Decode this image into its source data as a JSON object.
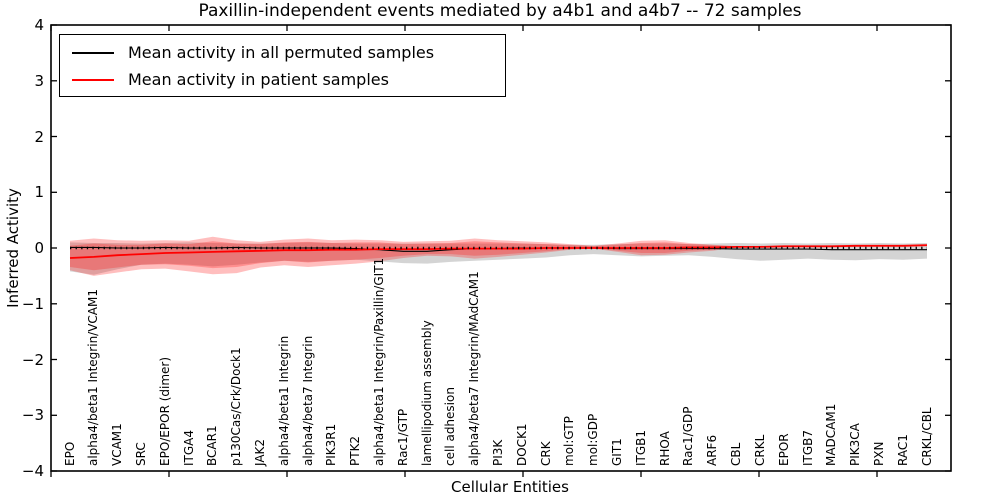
{
  "chart_data": {
    "type": "line",
    "title": "Paxillin-independent events mediated by a4b1 and a4b7 -- 72 samples",
    "xlabel": "Cellular Entities",
    "ylabel": "Inferred Activity",
    "ylim": [
      -4,
      4
    ],
    "ytick_labels": [
      "4",
      "3",
      "2",
      "1",
      "0",
      "−1",
      "−2",
      "−3",
      "−4"
    ],
    "grid": false,
    "legend_position": "upper left",
    "zero_line": {
      "style": "dotted",
      "color": "#000000",
      "y": 0
    },
    "categories": [
      "EPO",
      "alpha4/beta1 Integrin/VCAM1",
      "VCAM1",
      "SRC",
      "EPO/EPOR (dimer)",
      "ITGA4",
      "BCAR1",
      "p130Cas/Crk/Dock1",
      "JAK2",
      "alpha4/beta1 Integrin",
      "alpha4/beta7 Integrin",
      "PIK3R1",
      "PTK2",
      "alpha4/beta1 Integrin/Paxillin/GIT1",
      "Rac1/GTP",
      "lamellipodium assembly",
      "cell adhesion",
      "alpha4/beta7 Integrin/MAdCAM1",
      "PI3K",
      "DOCK1",
      "CRK",
      "mol:GTP",
      "mol:GDP",
      "GIT1",
      "ITGB1",
      "RHOA",
      "Rac1/GDP",
      "ARF6",
      "CBL",
      "CRKL",
      "EPOR",
      "ITGB7",
      "MADCAM1",
      "PIK3CA",
      "PXN",
      "RAC1",
      "CRKL/CBL"
    ],
    "series": [
      {
        "name": "Mean activity in all permuted samples",
        "color": "#000000",
        "values": [
          0.01,
          0.01,
          0.0,
          0.0,
          0.01,
          0.0,
          0.0,
          0.01,
          0.0,
          0.0,
          0.0,
          0.0,
          -0.01,
          -0.03,
          -0.06,
          -0.06,
          -0.03,
          -0.01,
          -0.01,
          0.0,
          0.0,
          0.0,
          0.0,
          -0.01,
          -0.01,
          -0.01,
          -0.01,
          -0.01,
          -0.02,
          -0.02,
          -0.02,
          -0.02,
          -0.03,
          -0.03,
          -0.03,
          -0.03,
          -0.03
        ]
      },
      {
        "name": "Mean activity in patient samples",
        "color": "#ff0000",
        "values": [
          -0.18,
          -0.16,
          -0.13,
          -0.11,
          -0.09,
          -0.08,
          -0.07,
          -0.06,
          -0.05,
          -0.04,
          -0.04,
          -0.03,
          -0.03,
          -0.02,
          -0.02,
          -0.02,
          -0.01,
          -0.01,
          -0.01,
          -0.01,
          0.0,
          0.0,
          0.0,
          0.0,
          0.0,
          0.0,
          0.01,
          0.01,
          0.02,
          0.02,
          0.03,
          0.03,
          0.03,
          0.04,
          0.04,
          0.04,
          0.05
        ]
      }
    ],
    "bands": [
      {
        "name": "permuted samples range",
        "color": "#787878",
        "opacity": 0.32,
        "upper": [
          0.1,
          0.09,
          0.09,
          0.08,
          0.09,
          0.1,
          0.09,
          0.08,
          0.08,
          0.09,
          0.1,
          0.09,
          0.08,
          0.08,
          0.08,
          0.08,
          0.08,
          0.08,
          0.08,
          0.08,
          0.07,
          0.06,
          0.06,
          0.07,
          0.08,
          0.08,
          0.07,
          0.08,
          0.09,
          0.08,
          0.09,
          0.08,
          0.09,
          0.08,
          0.09,
          0.08,
          0.09
        ],
        "lower": [
          -0.42,
          -0.48,
          -0.38,
          -0.3,
          -0.28,
          -0.3,
          -0.33,
          -0.3,
          -0.26,
          -0.23,
          -0.25,
          -0.23,
          -0.21,
          -0.24,
          -0.27,
          -0.28,
          -0.25,
          -0.23,
          -0.21,
          -0.19,
          -0.17,
          -0.13,
          -0.11,
          -0.13,
          -0.15,
          -0.14,
          -0.13,
          -0.16,
          -0.2,
          -0.23,
          -0.21,
          -0.19,
          -0.21,
          -0.22,
          -0.2,
          -0.21,
          -0.19
        ]
      },
      {
        "name": "patient samples outer range",
        "color": "#ff1414",
        "opacity": 0.28,
        "upper": [
          0.13,
          0.17,
          0.14,
          0.13,
          0.14,
          0.13,
          0.2,
          0.14,
          0.11,
          0.15,
          0.17,
          0.14,
          0.15,
          0.14,
          0.11,
          0.12,
          0.13,
          0.17,
          0.14,
          0.12,
          0.1,
          0.07,
          0.04,
          0.08,
          0.13,
          0.14,
          0.09,
          0.06,
          0.03,
          0.03,
          0.04,
          0.04,
          0.04,
          0.05,
          0.05,
          0.05,
          0.06
        ],
        "lower": [
          -0.4,
          -0.5,
          -0.44,
          -0.38,
          -0.37,
          -0.42,
          -0.47,
          -0.45,
          -0.35,
          -0.31,
          -0.34,
          -0.31,
          -0.28,
          -0.24,
          -0.18,
          -0.14,
          -0.15,
          -0.19,
          -0.16,
          -0.12,
          -0.08,
          -0.03,
          -0.01,
          -0.07,
          -0.13,
          -0.12,
          -0.08,
          -0.05,
          0.01,
          0.01,
          0.02,
          0.02,
          0.02,
          0.03,
          0.03,
          0.03,
          0.04
        ]
      },
      {
        "name": "patient samples inner range",
        "color": "#ff1414",
        "opacity": 0.28,
        "upper": [
          0.04,
          0.08,
          0.06,
          0.06,
          0.08,
          0.07,
          0.12,
          0.08,
          0.07,
          0.1,
          0.11,
          0.09,
          0.1,
          0.1,
          0.07,
          0.08,
          0.09,
          0.12,
          0.1,
          0.08,
          0.07,
          0.05,
          0.03,
          0.06,
          0.09,
          0.1,
          0.07,
          0.05,
          0.03,
          0.03,
          0.04,
          0.04,
          0.04,
          0.05,
          0.05,
          0.05,
          0.06
        ],
        "lower": [
          -0.34,
          -0.4,
          -0.35,
          -0.3,
          -0.29,
          -0.32,
          -0.36,
          -0.34,
          -0.27,
          -0.23,
          -0.26,
          -0.23,
          -0.21,
          -0.18,
          -0.14,
          -0.11,
          -0.11,
          -0.14,
          -0.12,
          -0.09,
          -0.06,
          -0.02,
          -0.01,
          -0.05,
          -0.09,
          -0.09,
          -0.05,
          -0.03,
          0.01,
          0.01,
          0.02,
          0.02,
          0.02,
          0.03,
          0.03,
          0.03,
          0.04
        ]
      }
    ]
  }
}
